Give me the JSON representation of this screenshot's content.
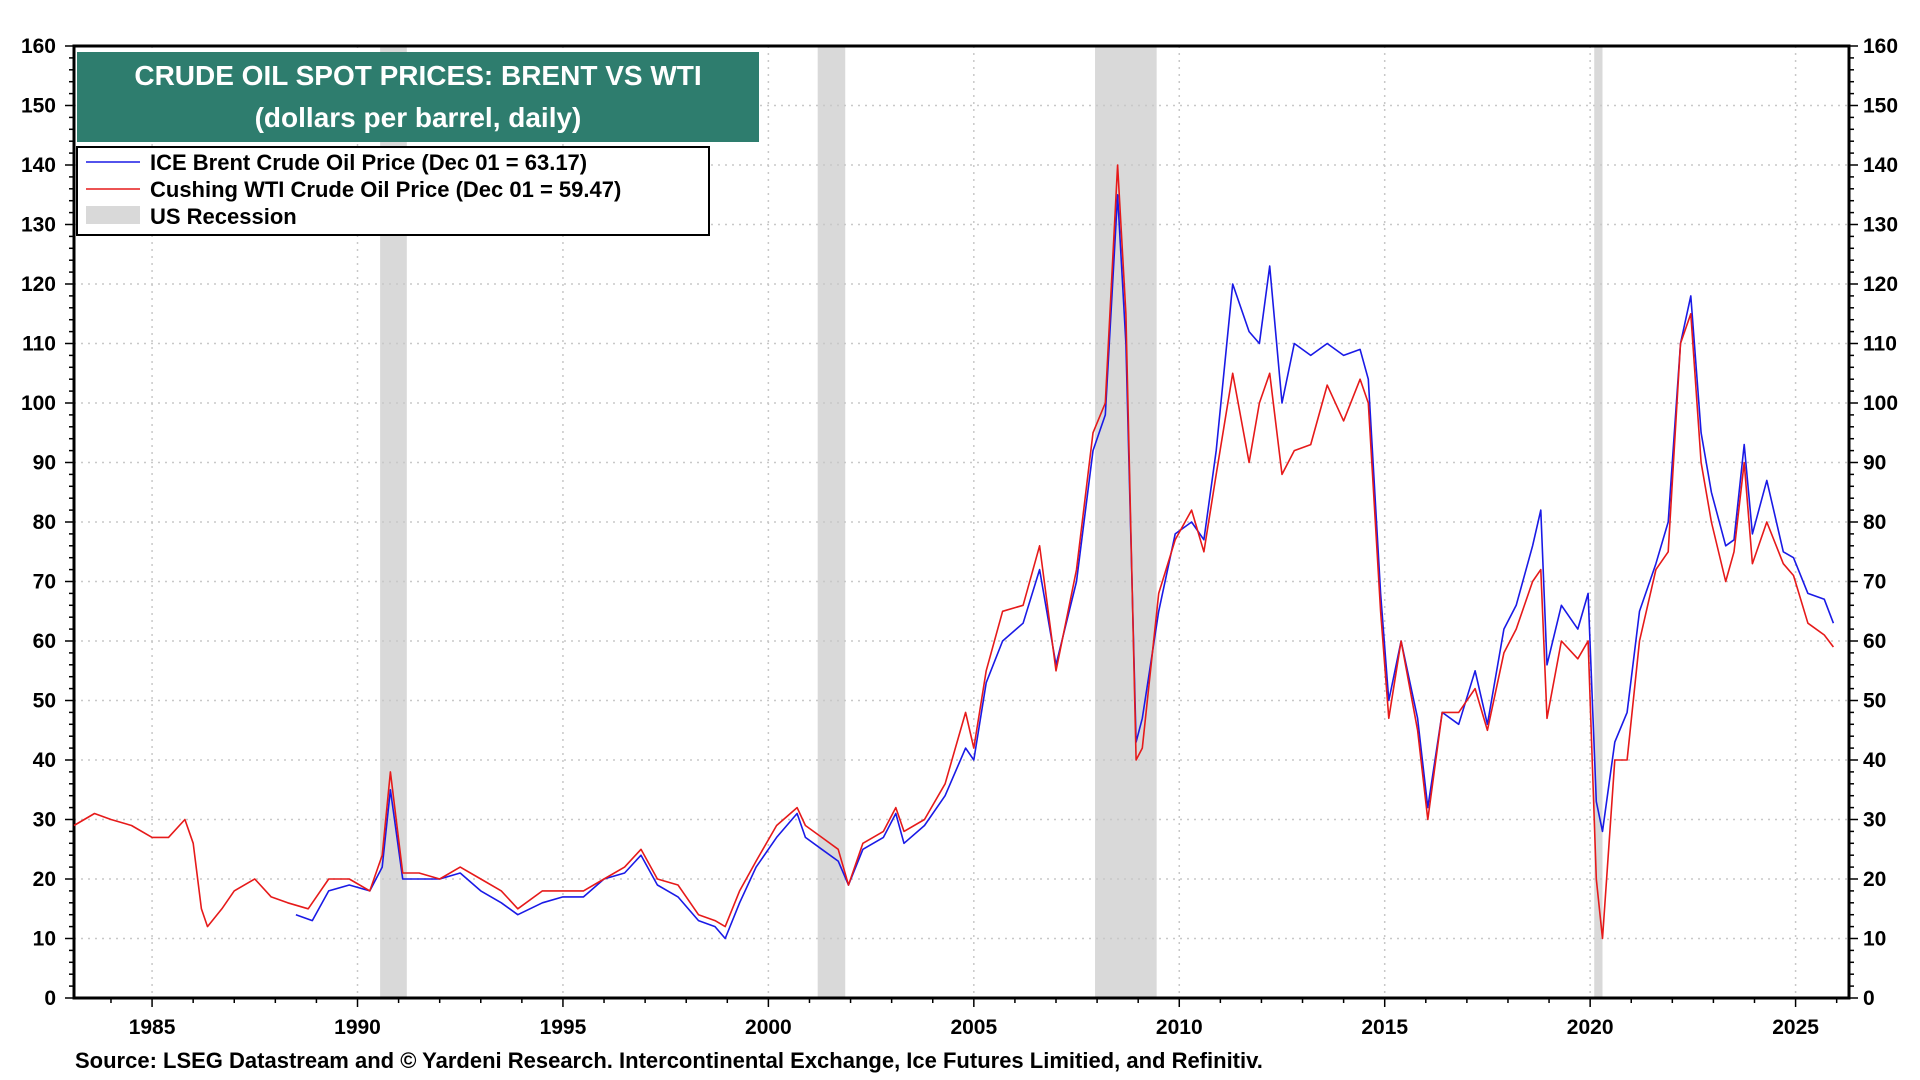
{
  "colors": {
    "brent": "#1a1ae6",
    "wti": "#e61a1a",
    "recession": "#d9d9d9",
    "title_bg": "#2e7d6e",
    "grid": "#c8c8c8"
  },
  "chart_data": {
    "type": "line",
    "title": "CRUDE OIL SPOT PRICES: BRENT VS WTI",
    "subtitle": "(dollars per barrel, daily)",
    "xlim": [
      1983.1,
      2026.3
    ],
    "ylim": [
      0,
      160
    ],
    "y_ticks": [
      0,
      10,
      20,
      30,
      40,
      50,
      60,
      70,
      80,
      90,
      100,
      110,
      120,
      130,
      140,
      150,
      160
    ],
    "x_ticks": [
      1985,
      1990,
      1995,
      2000,
      2005,
      2010,
      2015,
      2020,
      2025
    ],
    "grid": true,
    "legend_position": "top-left",
    "legend": {
      "brent": "ICE Brent Crude Oil Price (Dec 01 = 63.17)",
      "wti": "Cushing WTI Crude Oil Price (Dec 01 = 59.47)",
      "recession": "US Recession"
    },
    "recessions": [
      [
        1990.55,
        1991.2
      ],
      [
        2001.2,
        2001.87
      ],
      [
        2007.95,
        2009.45
      ],
      [
        2020.1,
        2020.3
      ]
    ],
    "series": [
      {
        "name": "ICE Brent Crude Oil Price",
        "key": "brent",
        "x": [
          1988.5,
          1988.9,
          1989.3,
          1989.8,
          1990.3,
          1990.6,
          1990.8,
          1991.1,
          1991.5,
          1992.0,
          1992.5,
          1993.0,
          1993.5,
          1993.9,
          1994.5,
          1995.0,
          1995.5,
          1996.0,
          1996.5,
          1996.9,
          1997.3,
          1997.8,
          1998.3,
          1998.7,
          1998.95,
          1999.3,
          1999.7,
          2000.2,
          2000.7,
          2000.9,
          2001.3,
          2001.7,
          2001.95,
          2002.3,
          2002.8,
          2003.1,
          2003.3,
          2003.8,
          2004.3,
          2004.8,
          2005.0,
          2005.3,
          2005.7,
          2006.2,
          2006.6,
          2007.0,
          2007.5,
          2007.9,
          2008.2,
          2008.5,
          2008.7,
          2008.95,
          2009.1,
          2009.5,
          2009.9,
          2010.3,
          2010.6,
          2010.9,
          2011.3,
          2011.7,
          2011.95,
          2012.2,
          2012.5,
          2012.8,
          2013.2,
          2013.6,
          2014.0,
          2014.4,
          2014.6,
          2014.9,
          2015.1,
          2015.4,
          2015.8,
          2016.05,
          2016.4,
          2016.8,
          2017.2,
          2017.5,
          2017.9,
          2018.2,
          2018.6,
          2018.8,
          2018.95,
          2019.3,
          2019.7,
          2019.95,
          2020.15,
          2020.3,
          2020.6,
          2020.9,
          2021.2,
          2021.6,
          2021.9,
          2022.2,
          2022.45,
          2022.7,
          2022.95,
          2023.3,
          2023.5,
          2023.75,
          2023.95,
          2024.3,
          2024.7,
          2024.95,
          2025.3,
          2025.7,
          2025.92
        ],
        "values": [
          14,
          13,
          18,
          19,
          18,
          22,
          35,
          20,
          20,
          20,
          21,
          18,
          16,
          14,
          16,
          17,
          17,
          20,
          21,
          24,
          19,
          17,
          13,
          12,
          10,
          16,
          22,
          27,
          31,
          27,
          25,
          23,
          19,
          25,
          27,
          31,
          26,
          29,
          34,
          42,
          40,
          53,
          60,
          63,
          72,
          56,
          70,
          92,
          98,
          135,
          110,
          43,
          47,
          65,
          78,
          80,
          77,
          92,
          120,
          112,
          110,
          123,
          100,
          110,
          108,
          110,
          108,
          109,
          104,
          68,
          50,
          60,
          47,
          32,
          48,
          46,
          55,
          46,
          62,
          66,
          76,
          82,
          56,
          66,
          62,
          68,
          33,
          28,
          43,
          48,
          65,
          73,
          80,
          110,
          118,
          95,
          85,
          76,
          77,
          93,
          78,
          87,
          75,
          74,
          68,
          67,
          63
        ]
      },
      {
        "name": "Cushing WTI Crude Oil Price",
        "key": "wti",
        "x": [
          1983.1,
          1983.6,
          1984.0,
          1984.5,
          1985.0,
          1985.4,
          1985.8,
          1986.0,
          1986.2,
          1986.35,
          1986.7,
          1987.0,
          1987.5,
          1987.9,
          1988.3,
          1988.8,
          1989.3,
          1989.8,
          1990.3,
          1990.6,
          1990.8,
          1991.1,
          1991.5,
          1992.0,
          1992.5,
          1993.0,
          1993.5,
          1993.9,
          1994.5,
          1995.0,
          1995.5,
          1996.0,
          1996.5,
          1996.9,
          1997.3,
          1997.8,
          1998.3,
          1998.7,
          1998.95,
          1999.3,
          1999.7,
          2000.2,
          2000.7,
          2000.9,
          2001.3,
          2001.7,
          2001.95,
          2002.3,
          2002.8,
          2003.1,
          2003.3,
          2003.8,
          2004.3,
          2004.8,
          2005.0,
          2005.3,
          2005.7,
          2006.2,
          2006.6,
          2007.0,
          2007.5,
          2007.9,
          2008.2,
          2008.5,
          2008.7,
          2008.95,
          2009.1,
          2009.5,
          2009.9,
          2010.3,
          2010.6,
          2010.9,
          2011.3,
          2011.7,
          2011.95,
          2012.2,
          2012.5,
          2012.8,
          2013.2,
          2013.6,
          2014.0,
          2014.4,
          2014.6,
          2014.9,
          2015.1,
          2015.4,
          2015.8,
          2016.05,
          2016.4,
          2016.8,
          2017.2,
          2017.5,
          2017.9,
          2018.2,
          2018.6,
          2018.8,
          2018.95,
          2019.3,
          2019.7,
          2019.95,
          2020.15,
          2020.3,
          2020.6,
          2020.9,
          2021.2,
          2021.6,
          2021.9,
          2022.2,
          2022.45,
          2022.7,
          2022.95,
          2023.3,
          2023.5,
          2023.75,
          2023.95,
          2024.3,
          2024.7,
          2024.95,
          2025.3,
          2025.7,
          2025.92
        ],
        "values": [
          29,
          31,
          30,
          29,
          27,
          27,
          30,
          26,
          15,
          12,
          15,
          18,
          20,
          17,
          16,
          15,
          20,
          20,
          18,
          24,
          38,
          21,
          21,
          20,
          22,
          20,
          18,
          15,
          18,
          18,
          18,
          20,
          22,
          25,
          20,
          19,
          14,
          13,
          12,
          18,
          23,
          29,
          32,
          29,
          27,
          25,
          19,
          26,
          28,
          32,
          28,
          30,
          36,
          48,
          42,
          55,
          65,
          66,
          76,
          55,
          72,
          95,
          100,
          140,
          115,
          40,
          42,
          68,
          77,
          82,
          75,
          88,
          105,
          90,
          100,
          105,
          88,
          92,
          93,
          103,
          97,
          104,
          100,
          65,
          47,
          60,
          45,
          30,
          48,
          48,
          52,
          45,
          58,
          62,
          70,
          72,
          47,
          60,
          57,
          60,
          20,
          10,
          40,
          40,
          60,
          72,
          75,
          110,
          115,
          90,
          80,
          70,
          75,
          90,
          73,
          80,
          73,
          71,
          63,
          61,
          59
        ]
      }
    ]
  },
  "source": "Source: LSEG Datastream and © Yardeni Research. Intercontinental Exchange, Ice Futures Limitied, and Refinitiv."
}
